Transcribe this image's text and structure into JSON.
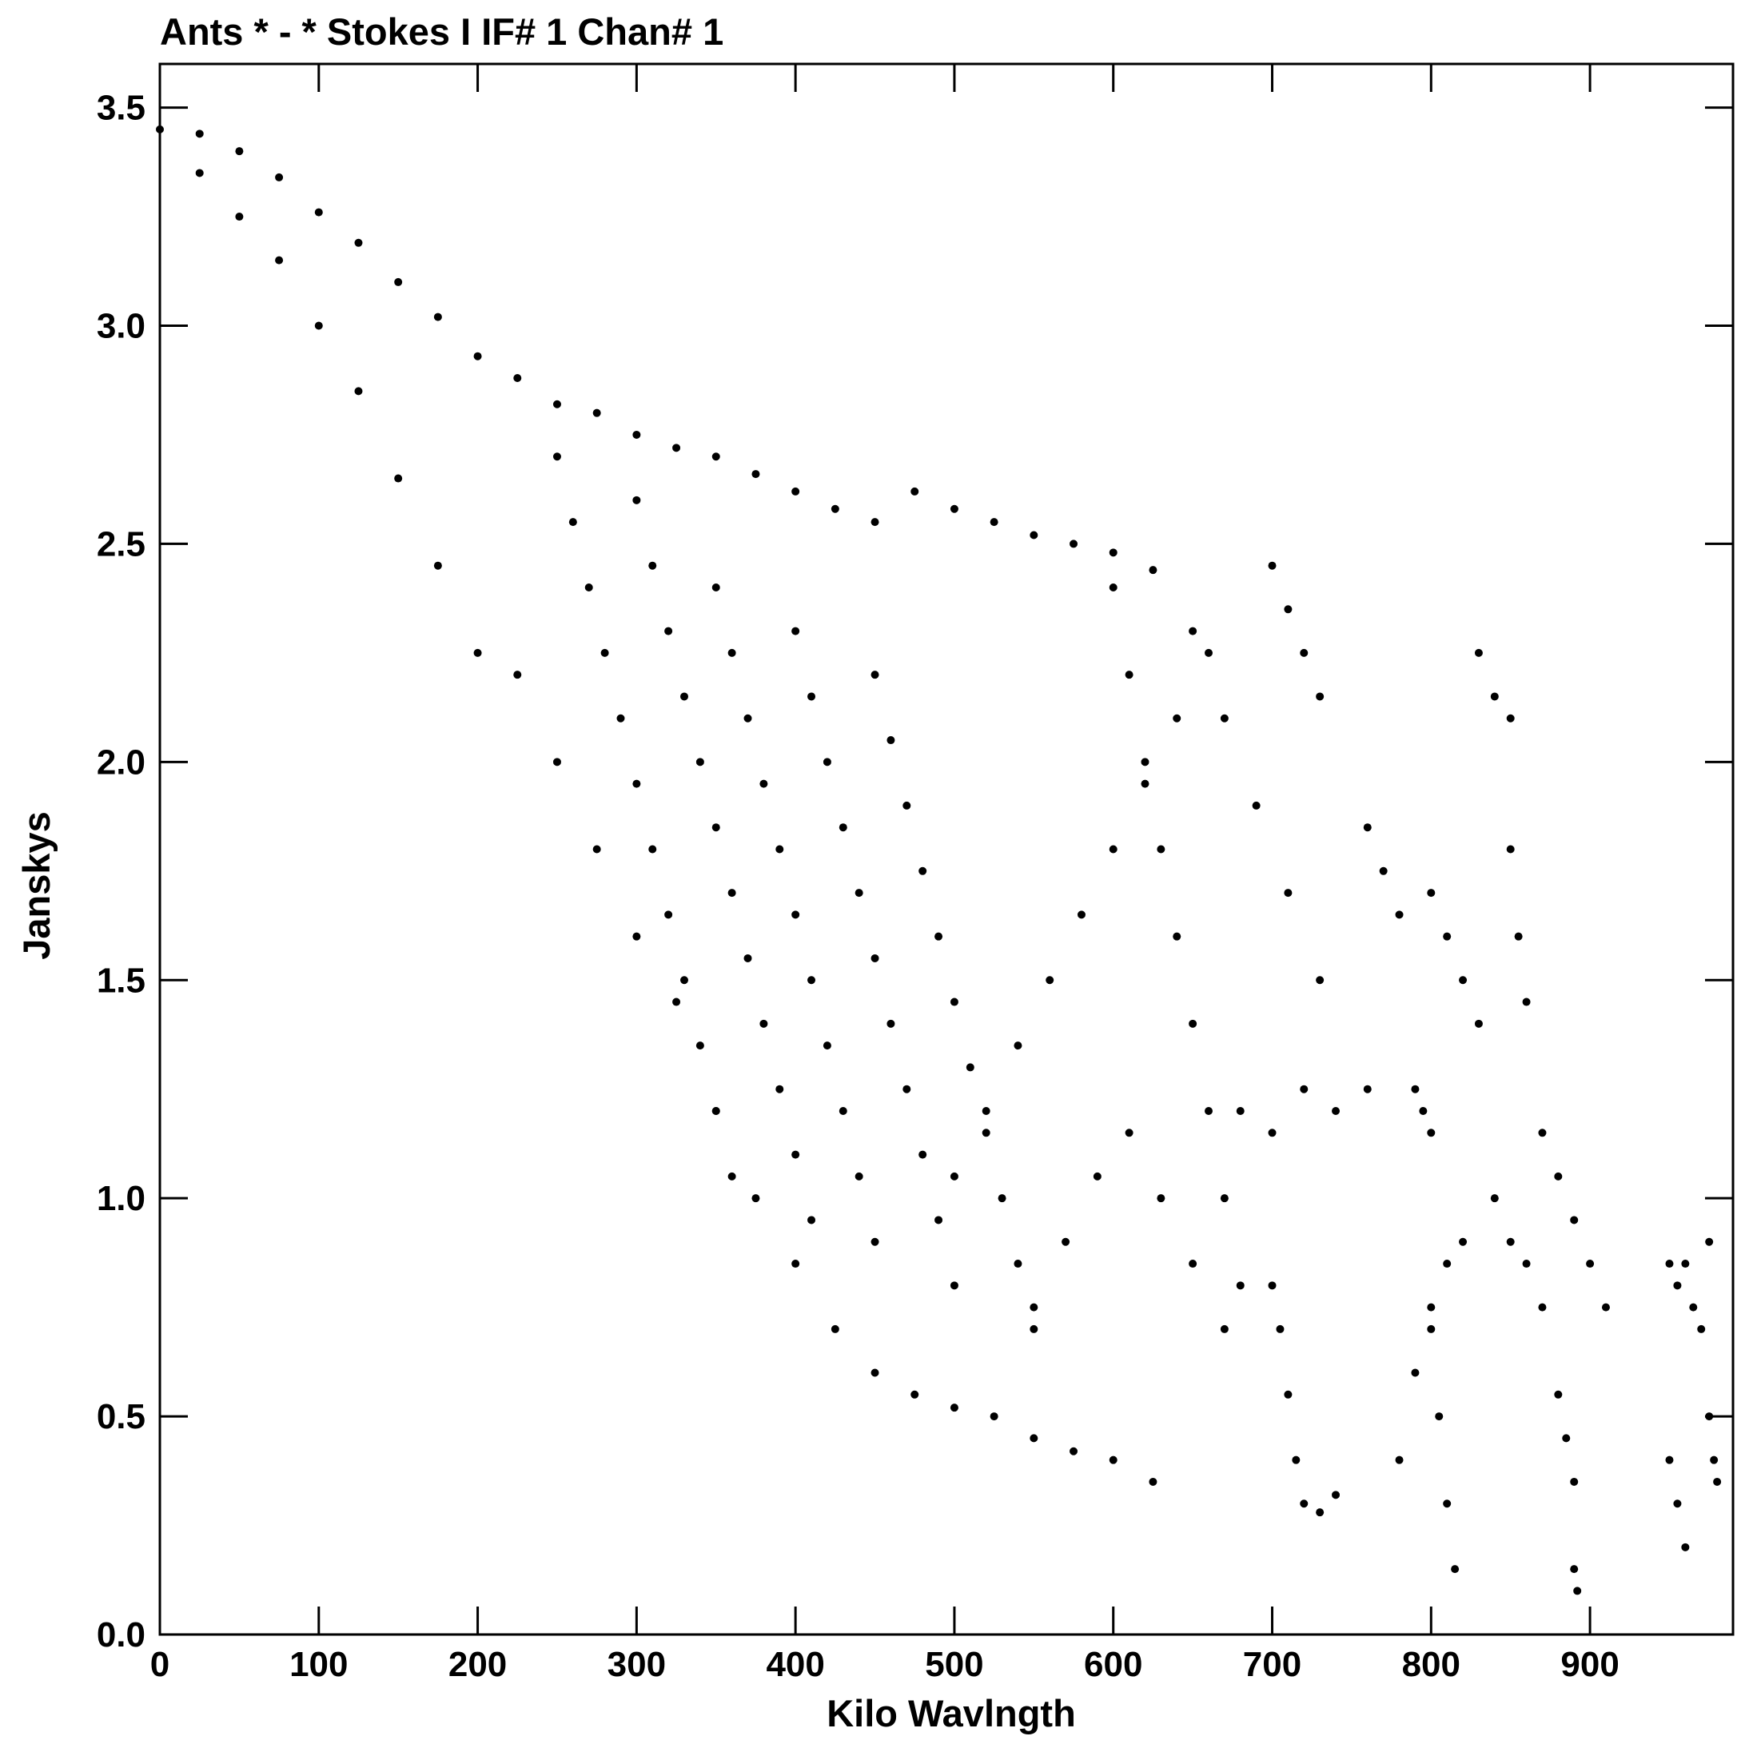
{
  "chart_data": {
    "type": "scatter",
    "title": "Ants * - *    Stokes I  IF# 1  Chan# 1",
    "xlabel": "Kilo Wavlngth",
    "ylabel": "Janskys",
    "xlim": [
      0,
      990
    ],
    "ylim": [
      0,
      3.6
    ],
    "x_ticks": [
      0,
      100,
      200,
      300,
      400,
      500,
      600,
      700,
      800,
      900
    ],
    "y_ticks": [
      0.0,
      0.5,
      1.0,
      1.5,
      2.0,
      2.5,
      3.0,
      3.5
    ],
    "x_tick_labels": [
      "0",
      "100",
      "200",
      "300",
      "400",
      "500",
      "600",
      "700",
      "800",
      "900"
    ],
    "y_tick_labels": [
      "0.0",
      "0.5",
      "1.0",
      "1.5",
      "2.0",
      "2.5",
      "3.0",
      "3.5"
    ],
    "grid": false,
    "marker_color": "#000000",
    "series": [
      {
        "values": [
          [
            0,
            3.45
          ],
          [
            25,
            3.44
          ],
          [
            50,
            3.4
          ],
          [
            75,
            3.34
          ],
          [
            100,
            3.26
          ],
          [
            125,
            3.19
          ],
          [
            150,
            3.1
          ],
          [
            175,
            3.02
          ],
          [
            200,
            2.93
          ],
          [
            225,
            2.88
          ],
          [
            250,
            2.82
          ],
          [
            275,
            2.8
          ],
          [
            300,
            2.75
          ],
          [
            325,
            2.72
          ],
          [
            350,
            2.7
          ],
          [
            375,
            2.66
          ],
          [
            400,
            2.62
          ],
          [
            425,
            2.58
          ],
          [
            450,
            2.55
          ],
          [
            475,
            2.62
          ],
          [
            500,
            2.58
          ],
          [
            525,
            2.55
          ],
          [
            550,
            2.52
          ],
          [
            575,
            2.5
          ],
          [
            600,
            2.48
          ],
          [
            625,
            2.44
          ],
          [
            25,
            3.35
          ],
          [
            50,
            3.25
          ],
          [
            75,
            3.15
          ],
          [
            100,
            3.0
          ],
          [
            125,
            2.85
          ],
          [
            150,
            2.65
          ],
          [
            175,
            2.45
          ],
          [
            200,
            2.25
          ],
          [
            225,
            2.2
          ],
          [
            250,
            2.0
          ],
          [
            275,
            1.8
          ],
          [
            300,
            1.6
          ],
          [
            325,
            1.45
          ],
          [
            350,
            1.2
          ],
          [
            375,
            1.0
          ],
          [
            400,
            0.85
          ],
          [
            425,
            0.7
          ],
          [
            450,
            0.6
          ],
          [
            475,
            0.55
          ],
          [
            500,
            0.52
          ],
          [
            525,
            0.5
          ],
          [
            550,
            0.45
          ],
          [
            575,
            0.42
          ],
          [
            600,
            0.4
          ],
          [
            625,
            0.35
          ],
          [
            250,
            2.7
          ],
          [
            260,
            2.55
          ],
          [
            270,
            2.4
          ],
          [
            280,
            2.25
          ],
          [
            290,
            2.1
          ],
          [
            300,
            1.95
          ],
          [
            310,
            1.8
          ],
          [
            320,
            1.65
          ],
          [
            330,
            1.5
          ],
          [
            340,
            1.35
          ],
          [
            350,
            1.2
          ],
          [
            360,
            1.05
          ],
          [
            300,
            2.6
          ],
          [
            310,
            2.45
          ],
          [
            320,
            2.3
          ],
          [
            330,
            2.15
          ],
          [
            340,
            2.0
          ],
          [
            350,
            1.85
          ],
          [
            360,
            1.7
          ],
          [
            370,
            1.55
          ],
          [
            380,
            1.4
          ],
          [
            390,
            1.25
          ],
          [
            400,
            1.1
          ],
          [
            410,
            0.95
          ],
          [
            350,
            2.4
          ],
          [
            360,
            2.25
          ],
          [
            370,
            2.1
          ],
          [
            380,
            1.95
          ],
          [
            390,
            1.8
          ],
          [
            400,
            1.65
          ],
          [
            410,
            1.5
          ],
          [
            420,
            1.35
          ],
          [
            430,
            1.2
          ],
          [
            440,
            1.05
          ],
          [
            450,
            0.9
          ],
          [
            400,
            2.3
          ],
          [
            410,
            2.15
          ],
          [
            420,
            2.0
          ],
          [
            430,
            1.85
          ],
          [
            440,
            1.7
          ],
          [
            450,
            1.55
          ],
          [
            460,
            1.4
          ],
          [
            470,
            1.25
          ],
          [
            480,
            1.1
          ],
          [
            490,
            0.95
          ],
          [
            500,
            0.8
          ],
          [
            450,
            2.2
          ],
          [
            460,
            2.05
          ],
          [
            470,
            1.9
          ],
          [
            480,
            1.75
          ],
          [
            490,
            1.6
          ],
          [
            500,
            1.45
          ],
          [
            510,
            1.3
          ],
          [
            520,
            1.15
          ],
          [
            530,
            1.0
          ],
          [
            540,
            0.85
          ],
          [
            550,
            0.7
          ],
          [
            500,
            1.05
          ],
          [
            520,
            1.2
          ],
          [
            540,
            1.35
          ],
          [
            560,
            1.5
          ],
          [
            580,
            1.65
          ],
          [
            600,
            1.8
          ],
          [
            620,
            1.95
          ],
          [
            640,
            2.1
          ],
          [
            660,
            2.25
          ],
          [
            550,
            0.75
          ],
          [
            570,
            0.9
          ],
          [
            590,
            1.05
          ],
          [
            610,
            1.15
          ],
          [
            630,
            1.0
          ],
          [
            650,
            0.85
          ],
          [
            670,
            0.7
          ],
          [
            600,
            2.4
          ],
          [
            610,
            2.2
          ],
          [
            620,
            2.0
          ],
          [
            630,
            1.8
          ],
          [
            640,
            1.6
          ],
          [
            650,
            1.4
          ],
          [
            660,
            1.2
          ],
          [
            670,
            1.0
          ],
          [
            680,
            0.8
          ],
          [
            650,
            2.3
          ],
          [
            670,
            2.1
          ],
          [
            690,
            1.9
          ],
          [
            710,
            1.7
          ],
          [
            730,
            1.5
          ],
          [
            680,
            1.2
          ],
          [
            700,
            1.15
          ],
          [
            720,
            1.25
          ],
          [
            740,
            1.2
          ],
          [
            760,
            1.25
          ],
          [
            700,
            2.45
          ],
          [
            710,
            2.35
          ],
          [
            720,
            2.25
          ],
          [
            730,
            2.15
          ],
          [
            700,
            0.8
          ],
          [
            705,
            0.7
          ],
          [
            710,
            0.55
          ],
          [
            715,
            0.4
          ],
          [
            720,
            0.3
          ],
          [
            730,
            0.28
          ],
          [
            740,
            0.32
          ],
          [
            760,
            1.85
          ],
          [
            770,
            1.75
          ],
          [
            780,
            1.65
          ],
          [
            780,
            0.4
          ],
          [
            790,
            0.6
          ],
          [
            800,
            0.75
          ],
          [
            810,
            0.85
          ],
          [
            820,
            0.9
          ],
          [
            790,
            1.25
          ],
          [
            795,
            1.2
          ],
          [
            800,
            1.15
          ],
          [
            800,
            0.7
          ],
          [
            805,
            0.5
          ],
          [
            810,
            0.3
          ],
          [
            815,
            0.15
          ],
          [
            800,
            1.7
          ],
          [
            810,
            1.6
          ],
          [
            820,
            1.5
          ],
          [
            830,
            1.4
          ],
          [
            830,
            2.25
          ],
          [
            840,
            2.15
          ],
          [
            850,
            2.1
          ],
          [
            850,
            1.8
          ],
          [
            855,
            1.6
          ],
          [
            860,
            1.45
          ],
          [
            840,
            1.0
          ],
          [
            850,
            0.9
          ],
          [
            860,
            0.85
          ],
          [
            870,
            0.75
          ],
          [
            870,
            1.15
          ],
          [
            880,
            1.05
          ],
          [
            890,
            0.95
          ],
          [
            900,
            0.85
          ],
          [
            910,
            0.75
          ],
          [
            880,
            0.55
          ],
          [
            885,
            0.45
          ],
          [
            890,
            0.35
          ],
          [
            890,
            0.15
          ],
          [
            892,
            0.1
          ],
          [
            950,
            0.85
          ],
          [
            955,
            0.8
          ],
          [
            960,
            0.85
          ],
          [
            950,
            0.4
          ],
          [
            955,
            0.3
          ],
          [
            960,
            0.2
          ],
          [
            965,
            0.75
          ],
          [
            970,
            0.7
          ],
          [
            975,
            0.9
          ],
          [
            975,
            0.5
          ],
          [
            978,
            0.4
          ],
          [
            980,
            0.35
          ]
        ]
      }
    ]
  }
}
